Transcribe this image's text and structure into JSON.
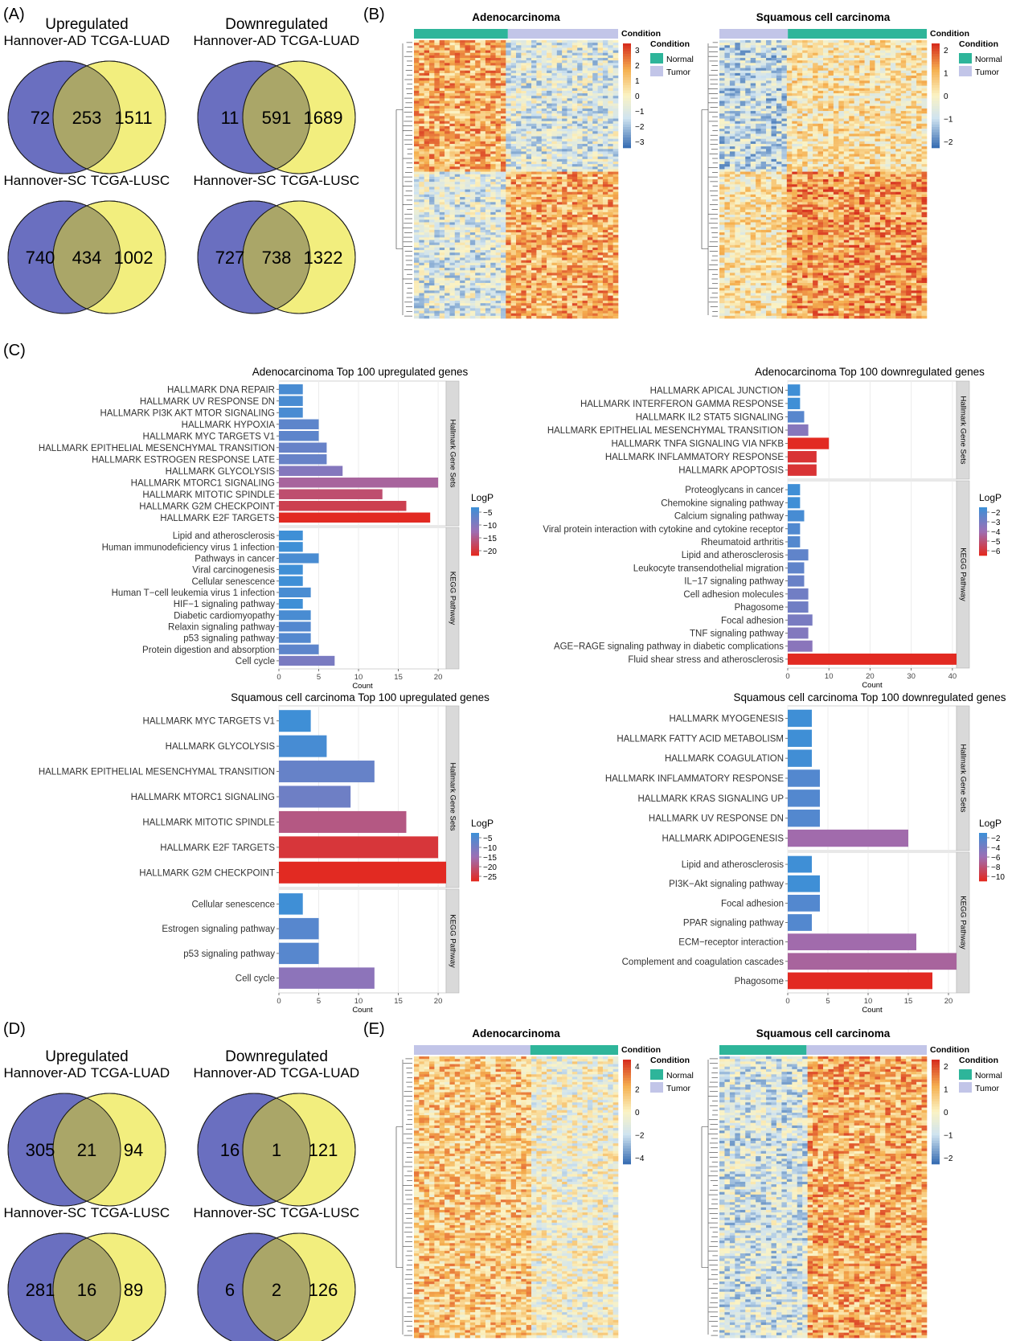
{
  "panels": {
    "A": "(A)",
    "B": "(B)",
    "C": "(C)",
    "D": "(D)",
    "E": "(E)"
  },
  "colors": {
    "venn_left": "#6a6fc0",
    "venn_right": "#f2ee7e",
    "venn_overlap": "#aaa668",
    "normal": "#2eb59a",
    "tumor": "#c2c5e8",
    "strip": "#d9d9d9",
    "bar_low": "#3f8fd6",
    "bar_mid": "#9d6fb4",
    "bar_high": "#e22a22"
  },
  "venn_A": {
    "col_titles": [
      "Upregulated",
      "Downregulated"
    ],
    "rows": [
      {
        "pairs": [
          {
            "left_label": "Hannover-AD",
            "right_label": "TCGA-LUAD",
            "left": "72",
            "mid": "253",
            "right": "1511"
          },
          {
            "left_label": "Hannover-AD",
            "right_label": "TCGA-LUAD",
            "left": "11",
            "mid": "591",
            "right": "1689"
          }
        ]
      },
      {
        "pairs": [
          {
            "left_label": "Hannover-SC",
            "right_label": "TCGA-LUSC",
            "left": "740",
            "mid": "434",
            "right": "1002"
          },
          {
            "left_label": "Hannover-SC",
            "right_label": "TCGA-LUSC",
            "left": "727",
            "mid": "738",
            "right": "1322"
          }
        ]
      }
    ]
  },
  "venn_D": {
    "col_titles": [
      "Upregulated",
      "Downregulated"
    ],
    "rows": [
      {
        "pairs": [
          {
            "left_label": "Hannover-AD",
            "right_label": "TCGA-LUAD",
            "left": "305",
            "mid": "21",
            "right": "94"
          },
          {
            "left_label": "Hannover-AD",
            "right_label": "TCGA-LUAD",
            "left": "16",
            "mid": "1",
            "right": "121"
          }
        ]
      },
      {
        "pairs": [
          {
            "left_label": "Hannover-SC",
            "right_label": "TCGA-LUSC",
            "left": "281",
            "mid": "16",
            "right": "89"
          },
          {
            "left_label": "Hannover-SC",
            "right_label": "TCGA-LUSC",
            "left": "6",
            "mid": "2",
            "right": "126"
          }
        ]
      }
    ]
  },
  "heatmaps_B": [
    {
      "title": "Adenocarcinoma",
      "bar_title": "Condition",
      "legend_title": "Condition",
      "legend_items": [
        "Normal",
        "Tumor"
      ],
      "scale_ticks": [
        "3",
        "2",
        "1",
        "0",
        "−1",
        "−2",
        "−3"
      ],
      "top": [
        {
          "cond": "normal",
          "frac": 0.46
        },
        {
          "cond": "tumor",
          "frac": 0.54
        }
      ]
    },
    {
      "title": "Squamous cell carcinoma",
      "bar_title": "Condition",
      "legend_title": "Condition",
      "legend_items": [
        "Normal",
        "Tumor"
      ],
      "scale_ticks": [
        "2",
        "1",
        "0",
        "−1",
        "−2"
      ],
      "top": [
        {
          "cond": "tumor",
          "frac": 0.33
        },
        {
          "cond": "normal",
          "frac": 0.67
        }
      ]
    }
  ],
  "heatmaps_E": [
    {
      "title": "Adenocarcinoma",
      "bar_title": "Condition",
      "legend_title": "Condition",
      "legend_items": [
        "Normal",
        "Tumor"
      ],
      "scale_ticks": [
        "4",
        "2",
        "0",
        "−2",
        "−4"
      ],
      "top": [
        {
          "cond": "tumor",
          "frac": 0.57
        },
        {
          "cond": "normal",
          "frac": 0.43
        }
      ]
    },
    {
      "title": "Squamous cell carcinoma",
      "bar_title": "Condition",
      "legend_title": "Condition",
      "legend_items": [
        "Normal",
        "Tumor"
      ],
      "scale_ticks": [
        "2",
        "1",
        "0",
        "−1",
        "−2"
      ],
      "top": [
        {
          "cond": "normal",
          "frac": 0.42
        },
        {
          "cond": "tumor",
          "frac": 0.58
        }
      ]
    }
  ],
  "chart_data": [
    {
      "type": "bar",
      "orientation": "horizontal",
      "title": "Adenocarcinoma Top 100 upregulated genes",
      "xlabel": "Count",
      "xlim": [
        0,
        21
      ],
      "xticks": [
        0,
        5,
        10,
        15,
        20
      ],
      "legend_title": "LogP",
      "legend_ticks": [
        "−5",
        "−10",
        "−15",
        "−20"
      ],
      "groups": [
        {
          "name": "Hallmark Gene Sets",
          "bars": [
            {
              "label": "HALLMARK DNA REPAIR",
              "count": 3,
              "logp": -4
            },
            {
              "label": "HALLMARK UV RESPONSE DN",
              "count": 3,
              "logp": -4
            },
            {
              "label": "HALLMARK PI3K AKT MTOR SIGNALING",
              "count": 3,
              "logp": -4
            },
            {
              "label": "HALLMARK HYPOXIA",
              "count": 5,
              "logp": -6
            },
            {
              "label": "HALLMARK MYC TARGETS V1",
              "count": 5,
              "logp": -6
            },
            {
              "label": "HALLMARK EPITHELIAL MESENCHYMAL TRANSITION",
              "count": 6,
              "logp": -7
            },
            {
              "label": "HALLMARK ESTROGEN RESPONSE LATE",
              "count": 6,
              "logp": -7
            },
            {
              "label": "HALLMARK GLYCOLYSIS",
              "count": 8,
              "logp": -10
            },
            {
              "label": "HALLMARK MTORC1 SIGNALING",
              "count": 20,
              "logp": -14
            },
            {
              "label": "HALLMARK MITOTIC SPINDLE",
              "count": 13,
              "logp": -17
            },
            {
              "label": "HALLMARK G2M CHECKPOINT",
              "count": 16,
              "logp": -19
            },
            {
              "label": "HALLMARK E2F TARGETS",
              "count": 19,
              "logp": -22
            }
          ]
        },
        {
          "name": "KEGG Pathway",
          "bars": [
            {
              "label": "Lipid and atherosclerosis",
              "count": 3,
              "logp": -3
            },
            {
              "label": "Human immunodeficiency virus 1 infection",
              "count": 3,
              "logp": -3
            },
            {
              "label": "Pathways in cancer",
              "count": 5,
              "logp": -4
            },
            {
              "label": "Viral carcinogenesis",
              "count": 3,
              "logp": -3
            },
            {
              "label": "Cellular senescence",
              "count": 3,
              "logp": -3
            },
            {
              "label": "Human T−cell leukemia virus 1 infection",
              "count": 4,
              "logp": -4
            },
            {
              "label": "HIF−1 signaling pathway",
              "count": 3,
              "logp": -3
            },
            {
              "label": "Diabetic cardiomyopathy",
              "count": 4,
              "logp": -4
            },
            {
              "label": "Relaxin signaling pathway",
              "count": 4,
              "logp": -5
            },
            {
              "label": "p53 signaling pathway",
              "count": 4,
              "logp": -5
            },
            {
              "label": "Protein digestion and absorption",
              "count": 5,
              "logp": -6
            },
            {
              "label": "Cell cycle",
              "count": 7,
              "logp": -9
            }
          ]
        }
      ]
    },
    {
      "type": "bar",
      "orientation": "horizontal",
      "title": "Adenocarcinoma Top 100 downregulated genes",
      "xlabel": "Count",
      "xlim": [
        0,
        41
      ],
      "xticks": [
        0,
        10,
        20,
        30,
        40
      ],
      "legend_title": "LogP",
      "legend_ticks": [
        "−2",
        "−3",
        "−4",
        "−5",
        "−6"
      ],
      "groups": [
        {
          "name": "Hallmark Gene Sets",
          "bars": [
            {
              "label": "HALLMARK APICAL JUNCTION",
              "count": 3,
              "logp": -1.8
            },
            {
              "label": "HALLMARK INTERFERON GAMMA RESPONSE",
              "count": 3,
              "logp": -1.8
            },
            {
              "label": "HALLMARK IL2 STAT5 SIGNALING",
              "count": 4,
              "logp": -2.4
            },
            {
              "label": "HALLMARK EPITHELIAL MESENCHYMAL TRANSITION",
              "count": 5,
              "logp": -3.5
            },
            {
              "label": "HALLMARK TNFA SIGNALING VIA NFKB",
              "count": 10,
              "logp": -6.3
            },
            {
              "label": "HALLMARK INFLAMMATORY RESPONSE",
              "count": 7,
              "logp": -6.0
            },
            {
              "label": "HALLMARK APOPTOSIS",
              "count": 7,
              "logp": -6.0
            }
          ]
        },
        {
          "name": "KEGG Pathway",
          "bars": [
            {
              "label": "Proteoglycans in cancer",
              "count": 3,
              "logp": -1.8
            },
            {
              "label": "Chemokine signaling pathway",
              "count": 3,
              "logp": -1.8
            },
            {
              "label": "Calcium signaling pathway",
              "count": 4,
              "logp": -2.0
            },
            {
              "label": "Viral protein interaction with cytokine and cytokine receptor",
              "count": 3,
              "logp": -2.2
            },
            {
              "label": "Rheumatoid arthritis",
              "count": 3,
              "logp": -2.3
            },
            {
              "label": "Lipid and atherosclerosis",
              "count": 5,
              "logp": -2.6
            },
            {
              "label": "Leukocyte transendothelial migration",
              "count": 4,
              "logp": -2.6
            },
            {
              "label": "IL−17 signaling pathway",
              "count": 4,
              "logp": -2.8
            },
            {
              "label": "Cell adhesion molecules",
              "count": 5,
              "logp": -3.0
            },
            {
              "label": "Phagosome",
              "count": 5,
              "logp": -3.0
            },
            {
              "label": "Focal adhesion",
              "count": 6,
              "logp": -3.2
            },
            {
              "label": "TNF signaling pathway",
              "count": 5,
              "logp": -3.4
            },
            {
              "label": "AGE−RAGE signaling pathway in diabetic complications",
              "count": 6,
              "logp": -3.6
            },
            {
              "label": "Fluid shear stress and atherosclerosis",
              "count": 41,
              "logp": -6.3
            }
          ]
        }
      ]
    },
    {
      "type": "bar",
      "orientation": "horizontal",
      "title": "Squamous cell carcinoma Top 100 upregulated genes",
      "xlabel": "Count",
      "xlim": [
        0,
        21
      ],
      "xticks": [
        0,
        5,
        10,
        15,
        20
      ],
      "legend_title": "LogP",
      "legend_ticks": [
        "−5",
        "−10",
        "−15",
        "−20",
        "−25"
      ],
      "groups": [
        {
          "name": "Hallmark Gene Sets",
          "bars": [
            {
              "label": "HALLMARK MYC TARGETS V1",
              "count": 4,
              "logp": -4
            },
            {
              "label": "HALLMARK GLYCOLYSIS",
              "count": 6,
              "logp": -5
            },
            {
              "label": "HALLMARK EPITHELIAL MESENCHYMAL TRANSITION",
              "count": 12,
              "logp": -9
            },
            {
              "label": "HALLMARK MTORC1 SIGNALING",
              "count": 9,
              "logp": -10
            },
            {
              "label": "HALLMARK MITOTIC SPINDLE",
              "count": 16,
              "logp": -20
            },
            {
              "label": "HALLMARK E2F TARGETS",
              "count": 20,
              "logp": -26
            },
            {
              "label": "HALLMARK G2M CHECKPOINT",
              "count": 21,
              "logp": -28
            }
          ]
        },
        {
          "name": "KEGG Pathway",
          "bars": [
            {
              "label": "Cellular senescence",
              "count": 3,
              "logp": -4
            },
            {
              "label": "Estrogen signaling pathway",
              "count": 5,
              "logp": -7
            },
            {
              "label": "p53 signaling pathway",
              "count": 5,
              "logp": -7
            },
            {
              "label": "Cell cycle",
              "count": 12,
              "logp": -14
            }
          ]
        }
      ]
    },
    {
      "type": "bar",
      "orientation": "horizontal",
      "title": "Squamous cell carcinoma Top 100 downregulated genes",
      "xlabel": "Count",
      "xlim": [
        0,
        21
      ],
      "xticks": [
        0,
        5,
        10,
        15,
        20
      ],
      "legend_title": "LogP",
      "legend_ticks": [
        "−2",
        "−4",
        "−6",
        "−8",
        "−10"
      ],
      "groups": [
        {
          "name": "Hallmark Gene Sets",
          "bars": [
            {
              "label": "HALLMARK MYOGENESIS",
              "count": 3,
              "logp": -1.5
            },
            {
              "label": "HALLMARK FATTY ACID METABOLISM",
              "count": 3,
              "logp": -1.5
            },
            {
              "label": "HALLMARK COAGULATION",
              "count": 3,
              "logp": -1.6
            },
            {
              "label": "HALLMARK INFLAMMATORY RESPONSE",
              "count": 4,
              "logp": -2.5
            },
            {
              "label": "HALLMARK KRAS SIGNALING UP",
              "count": 4,
              "logp": -2.5
            },
            {
              "label": "HALLMARK UV RESPONSE DN",
              "count": 4,
              "logp": -2.5
            },
            {
              "label": "HALLMARK ADIPOGENESIS",
              "count": 15,
              "logp": -6.5
            }
          ]
        },
        {
          "name": "KEGG Pathway",
          "bars": [
            {
              "label": "Lipid and atherosclerosis",
              "count": 3,
              "logp": -1.5
            },
            {
              "label": "PI3K−Akt signaling pathway",
              "count": 4,
              "logp": -1.5
            },
            {
              "label": "Focal adhesion",
              "count": 4,
              "logp": -2.5
            },
            {
              "label": "PPAR signaling pathway",
              "count": 3,
              "logp": -2.5
            },
            {
              "label": "ECM−receptor interaction",
              "count": 16,
              "logp": -6.5
            },
            {
              "label": "Complement and coagulation cascades",
              "count": 21,
              "logp": -7.0
            },
            {
              "label": "Phagosome",
              "count": 18,
              "logp": -11.0
            }
          ]
        }
      ]
    }
  ]
}
